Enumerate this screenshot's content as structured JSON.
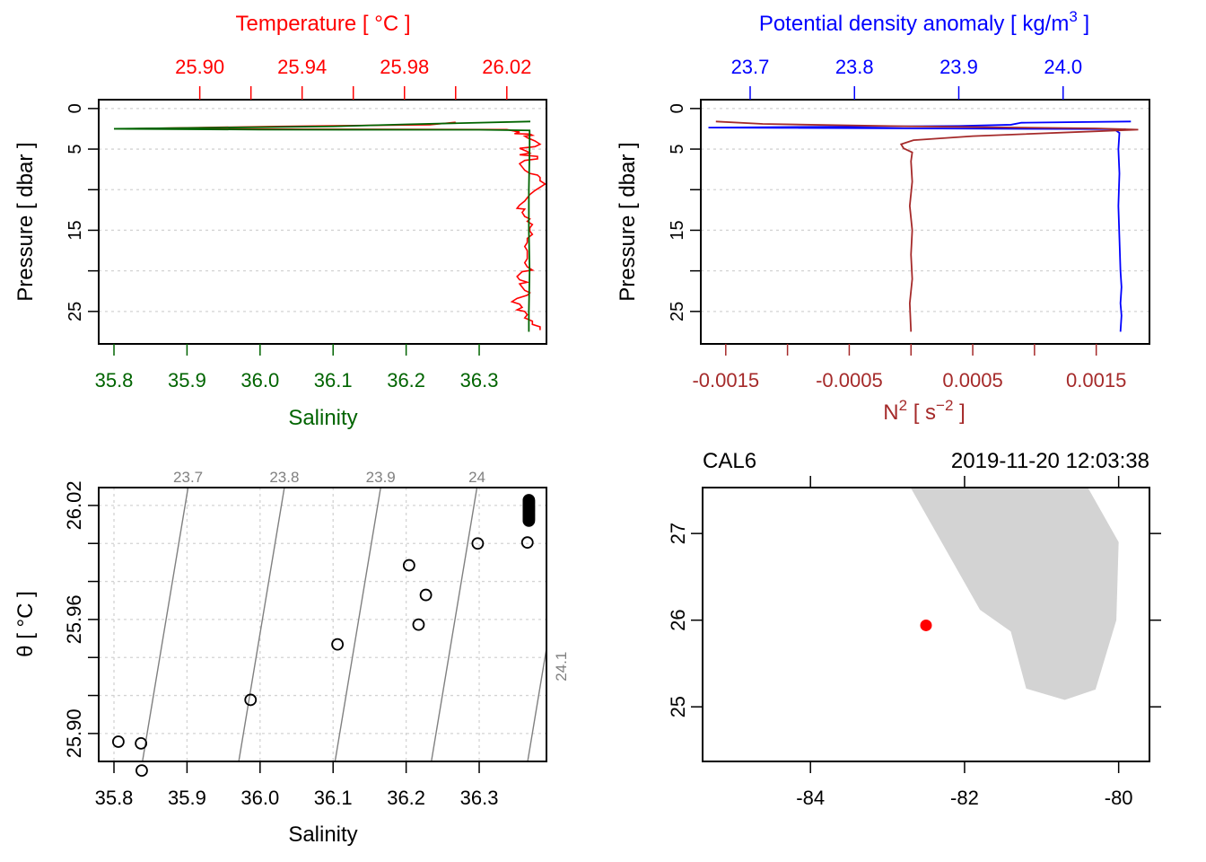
{
  "figure": {
    "type": "CTD summary plot (oce-style)",
    "colors": {
      "temperature": "#ff0000",
      "salinity": "#006400",
      "density": "#0000ff",
      "n2": "#a52a2a",
      "grid": "#d3d3d3",
      "isopycnal": "#808080",
      "land": "#d3d3d3",
      "station": "#ff0000",
      "axis": "#000000"
    }
  },
  "chart_data": [
    {
      "id": "profile-ts",
      "type": "line",
      "title": "",
      "top_axis_label": "Temperature [ °C ]",
      "top_axis_ticks": [
        "25.90",
        "25.94",
        "25.98",
        "26.02"
      ],
      "top_axis_minor_ticks": [
        25.9,
        25.92,
        25.94,
        25.96,
        25.98,
        26.0,
        26.02
      ],
      "top_axis_range": [
        25.8605,
        26.0355
      ],
      "xlabel": "Salinity",
      "x_ticks": [
        "35.8",
        "35.9",
        "36.0",
        "36.1",
        "36.2",
        "36.3"
      ],
      "x_range": [
        35.7791,
        36.3921
      ],
      "ylabel": "Pressure [ dbar ]",
      "y_ticks": [
        "0",
        "5",
        "10",
        "15",
        "20",
        "25"
      ],
      "y_tick_labels": [
        "0",
        "5",
        "",
        "15",
        "",
        "25"
      ],
      "y_range": [
        29.0,
        -1.09
      ],
      "y_reversed": true,
      "grid": true,
      "series": [
        {
          "name": "Temperature",
          "axis": "top",
          "points": [
            [
              26.0,
              1.7
            ],
            [
              25.99,
              2.0
            ],
            [
              25.93,
              2.2
            ],
            [
              25.871,
              2.5
            ],
            [
              26.02,
              2.6
            ],
            [
              26.025,
              2.9
            ],
            [
              26.023,
              3.1
            ],
            [
              26.029,
              3.15
            ],
            [
              26.03,
              3.3
            ],
            [
              26.027,
              3.4
            ],
            [
              26.028,
              3.6
            ],
            [
              26.031,
              4.0
            ],
            [
              26.033,
              4.4
            ],
            [
              26.031,
              4.7
            ],
            [
              26.025,
              4.9
            ],
            [
              26.028,
              5.3
            ],
            [
              26.029,
              5.5
            ],
            [
              26.025,
              5.7
            ],
            [
              26.032,
              5.9
            ],
            [
              26.032,
              6.2
            ],
            [
              26.027,
              6.4
            ],
            [
              26.025,
              6.8
            ],
            [
              26.026,
              7.2
            ],
            [
              26.027,
              7.6
            ],
            [
              26.029,
              8.0
            ],
            [
              26.032,
              8.2
            ],
            [
              26.033,
              8.5
            ],
            [
              26.033,
              8.9
            ],
            [
              26.035,
              9.3
            ],
            [
              26.033,
              9.7
            ],
            [
              26.031,
              10.1
            ],
            [
              26.029,
              10.6
            ],
            [
              26.028,
              11.0
            ],
            [
              26.027,
              11.4
            ],
            [
              26.025,
              11.9
            ],
            [
              26.024,
              12.3
            ],
            [
              26.027,
              12.4
            ],
            [
              26.026,
              12.8
            ],
            [
              26.027,
              13.3
            ],
            [
              26.029,
              13.6
            ],
            [
              26.028,
              13.9
            ],
            [
              26.03,
              14.3
            ],
            [
              26.029,
              14.7
            ],
            [
              26.029,
              15.1
            ],
            [
              26.03,
              15.5
            ],
            [
              26.028,
              16.0
            ],
            [
              26.028,
              16.5
            ],
            [
              26.027,
              17.0
            ],
            [
              26.028,
              17.5
            ],
            [
              26.028,
              18.0
            ],
            [
              26.028,
              18.5
            ],
            [
              26.027,
              19.0
            ],
            [
              26.028,
              19.5
            ],
            [
              26.03,
              19.9
            ],
            [
              26.026,
              20.1
            ],
            [
              26.025,
              20.4
            ],
            [
              26.024,
              20.7
            ],
            [
              26.025,
              21.1
            ],
            [
              26.027,
              21.3
            ],
            [
              26.028,
              21.4
            ],
            [
              26.025,
              21.6
            ],
            [
              26.026,
              22.0
            ],
            [
              26.027,
              22.4
            ],
            [
              26.029,
              22.7
            ],
            [
              26.028,
              23.0
            ],
            [
              26.024,
              23.4
            ],
            [
              26.022,
              23.8
            ],
            [
              26.025,
              24.1
            ],
            [
              26.026,
              24.5
            ],
            [
              26.024,
              24.8
            ],
            [
              26.027,
              25.0
            ],
            [
              26.028,
              25.4
            ],
            [
              26.027,
              25.8
            ],
            [
              26.03,
              26.2
            ],
            [
              26.03,
              26.6
            ],
            [
              26.033,
              26.9
            ],
            [
              26.033,
              27.3
            ]
          ]
        },
        {
          "name": "Salinity",
          "axis": "bottom",
          "points": [
            [
              36.37,
              1.6
            ],
            [
              36.2,
              1.95
            ],
            [
              36.1,
              2.2
            ],
            [
              35.8,
              2.5
            ],
            [
              36.0,
              2.6
            ],
            [
              36.3,
              2.62
            ],
            [
              36.369,
              2.7
            ],
            [
              36.369,
              5.0
            ],
            [
              36.368,
              10.0
            ],
            [
              36.368,
              15.0
            ],
            [
              36.369,
              20.0
            ],
            [
              36.368,
              25.0
            ],
            [
              36.368,
              27.5
            ]
          ]
        }
      ]
    },
    {
      "id": "profile-density-n2",
      "type": "line",
      "top_axis_label": "Potential density anomaly [ kg/m3 ]",
      "top_axis_ticks": [
        "23.7",
        "23.8",
        "23.9",
        "24.0"
      ],
      "top_axis_range": [
        23.6527,
        24.0828
      ],
      "xlabel": "N2 [ s-2 ]",
      "x_ticks": [
        "-0.0015",
        "-0.001",
        "-0.0005",
        "0",
        "0.0005",
        "0.001",
        "0.0015"
      ],
      "x_tick_labels": [
        "-0.0015",
        "",
        "-0.0005",
        "",
        "0.0005",
        "",
        "0.0015"
      ],
      "x_range": [
        -0.001702,
        0.001931
      ],
      "ylabel": "Pressure [ dbar ]",
      "y_ticks": [
        "0",
        "5",
        "10",
        "15",
        "20",
        "25"
      ],
      "y_tick_labels": [
        "0",
        "5",
        "",
        "15",
        "",
        "25"
      ],
      "y_range": [
        29.0,
        -1.09
      ],
      "y_reversed": true,
      "grid": true,
      "series": [
        {
          "name": "Potential density anomaly",
          "axis": "top",
          "points": [
            [
              24.065,
              1.6
            ],
            [
              23.96,
              1.75
            ],
            [
              23.95,
              2.0
            ],
            [
              23.9,
              2.15
            ],
            [
              23.66,
              2.35
            ],
            [
              24.06,
              2.55
            ],
            [
              24.05,
              2.65
            ],
            [
              24.054,
              3.0
            ],
            [
              24.053,
              5.0
            ],
            [
              24.054,
              8.0
            ],
            [
              24.053,
              12.0
            ],
            [
              24.054,
              16.0
            ],
            [
              24.055,
              20.0
            ],
            [
              24.056,
              22.0
            ],
            [
              24.055,
              24.0
            ],
            [
              24.056,
              25.5
            ],
            [
              24.055,
              27.5
            ]
          ]
        },
        {
          "name": "N2",
          "axis": "bottom",
          "points": [
            [
              -0.00158,
              1.6
            ],
            [
              -0.0012,
              1.9
            ],
            [
              0.0,
              2.2
            ],
            [
              0.0015,
              2.45
            ],
            [
              0.00184,
              2.6
            ],
            [
              0.0015,
              2.8
            ],
            [
              0.0005,
              3.4
            ],
            [
              2e-05,
              3.9
            ],
            [
              -8e-05,
              4.4
            ],
            [
              -6e-05,
              4.9
            ],
            [
              1e-05,
              5.4
            ],
            [
              0.0,
              6.5
            ],
            [
              1e-05,
              9.0
            ],
            [
              -1e-05,
              12.0
            ],
            [
              1e-05,
              15.0
            ],
            [
              0.0,
              18.0
            ],
            [
              1e-05,
              21.0
            ],
            [
              -1e-05,
              24.0
            ],
            [
              0.0,
              27.5
            ]
          ]
        }
      ]
    },
    {
      "id": "ts-diagram",
      "type": "scatter",
      "xlabel": "Salinity",
      "ylabel": "θ [ °C ]",
      "x_ticks": [
        "35.8",
        "35.9",
        "36.0",
        "36.1",
        "36.2",
        "36.3"
      ],
      "x_range": [
        35.7791,
        36.3921
      ],
      "y_ticks": [
        "25.90",
        "25.92",
        "25.94",
        "25.96",
        "25.98",
        "26.00",
        "26.02"
      ],
      "y_tick_labels": [
        "25.90",
        "",
        "",
        "25.96",
        "",
        "",
        "26.02"
      ],
      "y_range": [
        25.8853,
        26.0294
      ],
      "grid": true,
      "isopycnals": [
        {
          "label": "23.7",
          "value": 23.7
        },
        {
          "label": "23.8",
          "value": 23.8
        },
        {
          "label": "23.9",
          "value": 23.9
        },
        {
          "label": "24",
          "value": 24.0
        },
        {
          "label": "24.1",
          "value": 24.1
        }
      ],
      "points": [
        [
          35.806,
          25.8957
        ],
        [
          35.837,
          25.8948
        ],
        [
          35.838,
          25.8805
        ],
        [
          35.987,
          25.9177
        ],
        [
          36.106,
          25.9469
        ],
        [
          36.204,
          25.9885
        ],
        [
          36.227,
          25.9729
        ],
        [
          36.217,
          25.9573
        ],
        [
          36.298,
          26.0
        ],
        [
          36.366,
          26.0005
        ]
      ],
      "cluster": {
        "salinity": 36.368,
        "theta_range": [
          26.012,
          26.023
        ],
        "count_note": "dense overlapping points"
      }
    },
    {
      "id": "station-map",
      "type": "map",
      "station": "CAL6",
      "datetime": "2019-11-20 12:03:38",
      "x_ticks": [
        "-84",
        "-82",
        "-80"
      ],
      "x_range": [
        -85.4,
        -79.6
      ],
      "y_ticks": [
        "25",
        "26",
        "27"
      ],
      "y_range": [
        24.37,
        27.53
      ],
      "station_location": {
        "lon": -82.5,
        "lat": 25.94
      },
      "land_outline": [
        [
          -82.7,
          27.53
        ],
        [
          -80.4,
          27.53
        ],
        [
          -80.0,
          26.9
        ],
        [
          -80.03,
          26.0
        ],
        [
          -80.3,
          25.2
        ],
        [
          -80.7,
          25.08
        ],
        [
          -81.2,
          25.21
        ],
        [
          -81.4,
          25.87
        ],
        [
          -81.8,
          26.12
        ],
        [
          -82.7,
          27.53
        ]
      ]
    }
  ]
}
